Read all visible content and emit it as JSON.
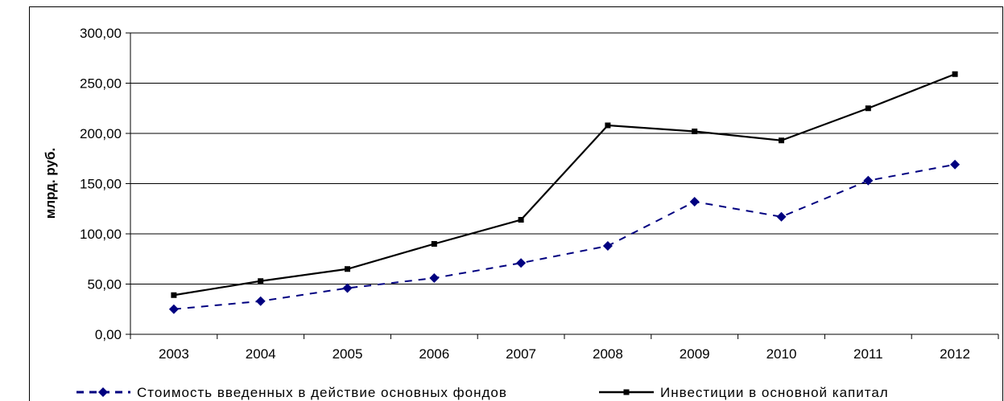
{
  "chart_data": {
    "type": "line",
    "title": "",
    "xlabel": "",
    "ylabel": "млрд. руб.",
    "categories": [
      "2003",
      "2004",
      "2005",
      "2006",
      "2007",
      "2008",
      "2009",
      "2010",
      "2011",
      "2012"
    ],
    "ylim": [
      0,
      300
    ],
    "y_ticks": [
      "0,00",
      "50,00",
      "100,00",
      "150,00",
      "200,00",
      "250,00",
      "300,00"
    ],
    "grid": true,
    "legend_position": "bottom",
    "series": [
      {
        "name": "Стоимость введенных в действие основных фондов",
        "values": [
          25,
          33,
          46,
          56,
          71,
          88,
          132,
          117,
          153,
          169
        ],
        "color": "#000080",
        "line_style": "dashed",
        "marker": "diamond"
      },
      {
        "name": "Инвестиции в основной капитал",
        "values": [
          39,
          53,
          65,
          90,
          114,
          208,
          202,
          193,
          225,
          259
        ],
        "color": "#000000",
        "line_style": "solid",
        "marker": "square"
      }
    ]
  }
}
